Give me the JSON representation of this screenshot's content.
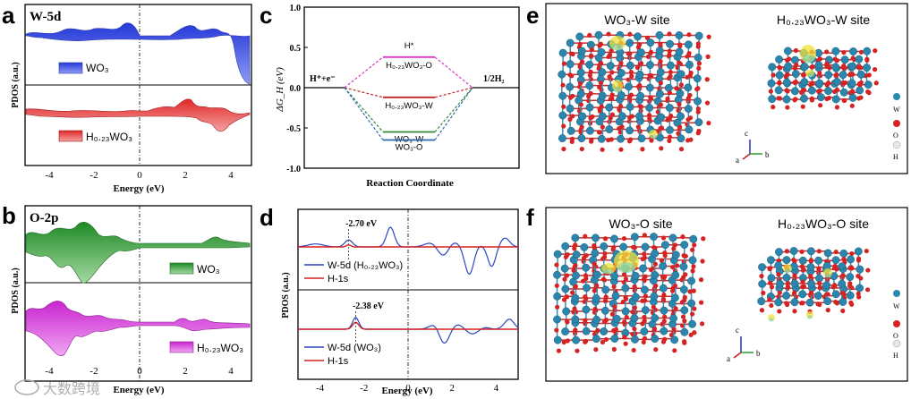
{
  "panel_letters": {
    "a": "a",
    "b": "b",
    "c": "c",
    "d": "d",
    "e": "e",
    "f": "f"
  },
  "panel_a": {
    "tag": "W-5d",
    "ylabel": "PDOS (a.u.)",
    "xlabel": "Energy (eV)",
    "legend_top": "WO₃",
    "legend_bottom": "H₀.₂₃WO₃",
    "xticks": [
      "-4",
      "-2",
      "0",
      "2",
      "4"
    ],
    "color_top": "#3d55d8",
    "color_bottom": "#e03535"
  },
  "panel_b": {
    "tag": "O-2p",
    "ylabel": "PDOS (a.u.)",
    "xlabel": "Energy (eV)",
    "legend_top": "WO₃",
    "legend_bottom": "H₀.₂₃WO₃",
    "xticks": [
      "-4",
      "-2",
      "0",
      "2",
      "4"
    ],
    "color_top": "#2f9a35",
    "color_bottom": "#d238d8"
  },
  "panel_e": {
    "left_title": "WO₃-W site",
    "right_title": "H₀.₂₃WO₃-W site"
  },
  "panel_f": {
    "left_title": "WO₃-O site",
    "right_title": "H₀.₂₃WO₃-O site"
  },
  "axes_labels": {
    "a": "a",
    "b": "b",
    "c": "c"
  },
  "atom_legend": [
    "W",
    "O",
    "H"
  ],
  "watermark": "大数跨境",
  "chart_data": [
    {
      "type": "line",
      "id": "c",
      "title": "",
      "xlabel": "Reaction Coordinate",
      "ylabel": "ΔG_H (eV)",
      "ylim": [
        -1.0,
        1.0
      ],
      "yticks": [
        "1.0",
        "0.5",
        "0.0",
        "-0.5",
        "-1.0"
      ],
      "start_label": "H⁺+e⁻",
      "end_label": "1/2H₂",
      "series": [
        {
          "name": "H₀.₂₃WO₃-O",
          "value": 0.38,
          "color": "#d63cc8",
          "top_label": "H*"
        },
        {
          "name": "H₀.₂₃WO₃-W",
          "value": -0.12,
          "color": "#c0262b"
        },
        {
          "name": "WO₃-W",
          "value": -0.55,
          "color": "#2f8a35"
        },
        {
          "name": "WO₃-O",
          "value": -0.65,
          "color": "#2e6ab0"
        }
      ]
    },
    {
      "type": "line",
      "id": "d",
      "xlabel": "Energy (eV)",
      "ylabel": "PDOS (a.u.)",
      "xlim": [
        -5,
        5
      ],
      "xticks": [
        "-4",
        "-2",
        "0",
        "2",
        "4"
      ],
      "subplots": [
        {
          "annotation": "-2.70 eV",
          "peak_x": -2.7,
          "legend": [
            "W-5d (H₀.₂₃WO₃)",
            "H-1s"
          ]
        },
        {
          "annotation": "-2.38 eV",
          "peak_x": -2.38,
          "legend": [
            "W-5d (WO₃)",
            "H-1s"
          ]
        }
      ]
    }
  ]
}
